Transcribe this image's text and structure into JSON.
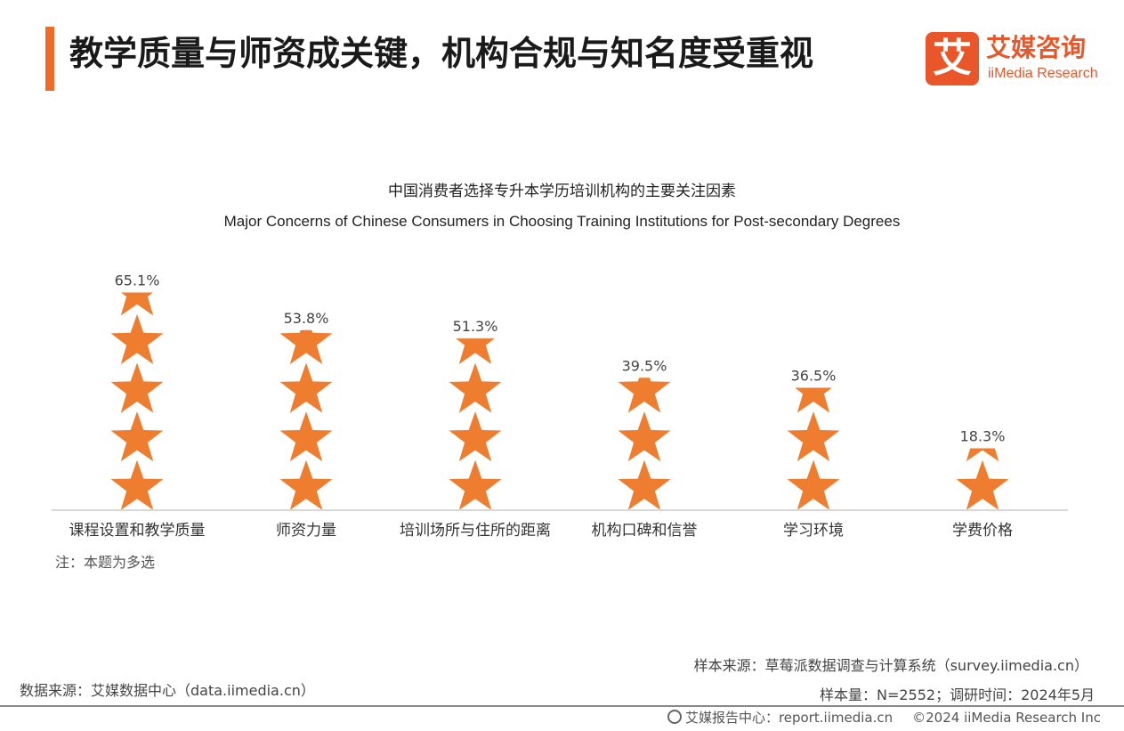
{
  "header": {
    "title": "教学质量与师资成关键，机构合规与知名度受重视",
    "logo_mark": "艾",
    "logo_cn": "艾媒咨询",
    "logo_en": "iiMedia Research"
  },
  "colors": {
    "accent": "#f06a2a",
    "star": "#ef7d30",
    "axis": "#cccccc"
  },
  "chart_data": {
    "type": "bar",
    "title": "中国消费者选择专升本学历培训机构的主要关注因素",
    "subtitle": "Major Concerns of Chinese Consumers in Choosing Training Institutions for Post-secondary Degrees",
    "categories": [
      "课程设置和教学质量",
      "师资力量",
      "培训场所与住所的距离",
      "机构口碑和信誉",
      "学习环境",
      "学费价格"
    ],
    "values": [
      65.1,
      53.8,
      51.3,
      39.5,
      36.5,
      18.3
    ],
    "value_labels": [
      "65.1%",
      "53.8%",
      "51.3%",
      "39.5%",
      "36.5%",
      "18.3%"
    ],
    "unit": "%",
    "ylim": [
      0,
      70
    ],
    "grid": false,
    "legend": "none"
  },
  "note": "注：本题为多选",
  "sources": {
    "sample_source": "样本来源：草莓派数据调查与计算系统（survey.iimedia.cn）",
    "sample_info": "样本量：N=2552；调研时间：2024年5月",
    "data_source": "数据来源：艾媒数据中心（data.iimedia.cn）"
  },
  "footer": {
    "report_center": "艾媒报告中心：report.iimedia.cn",
    "copyright": "©2024  iiMedia Research  Inc",
    "icon": "globe-icon"
  }
}
